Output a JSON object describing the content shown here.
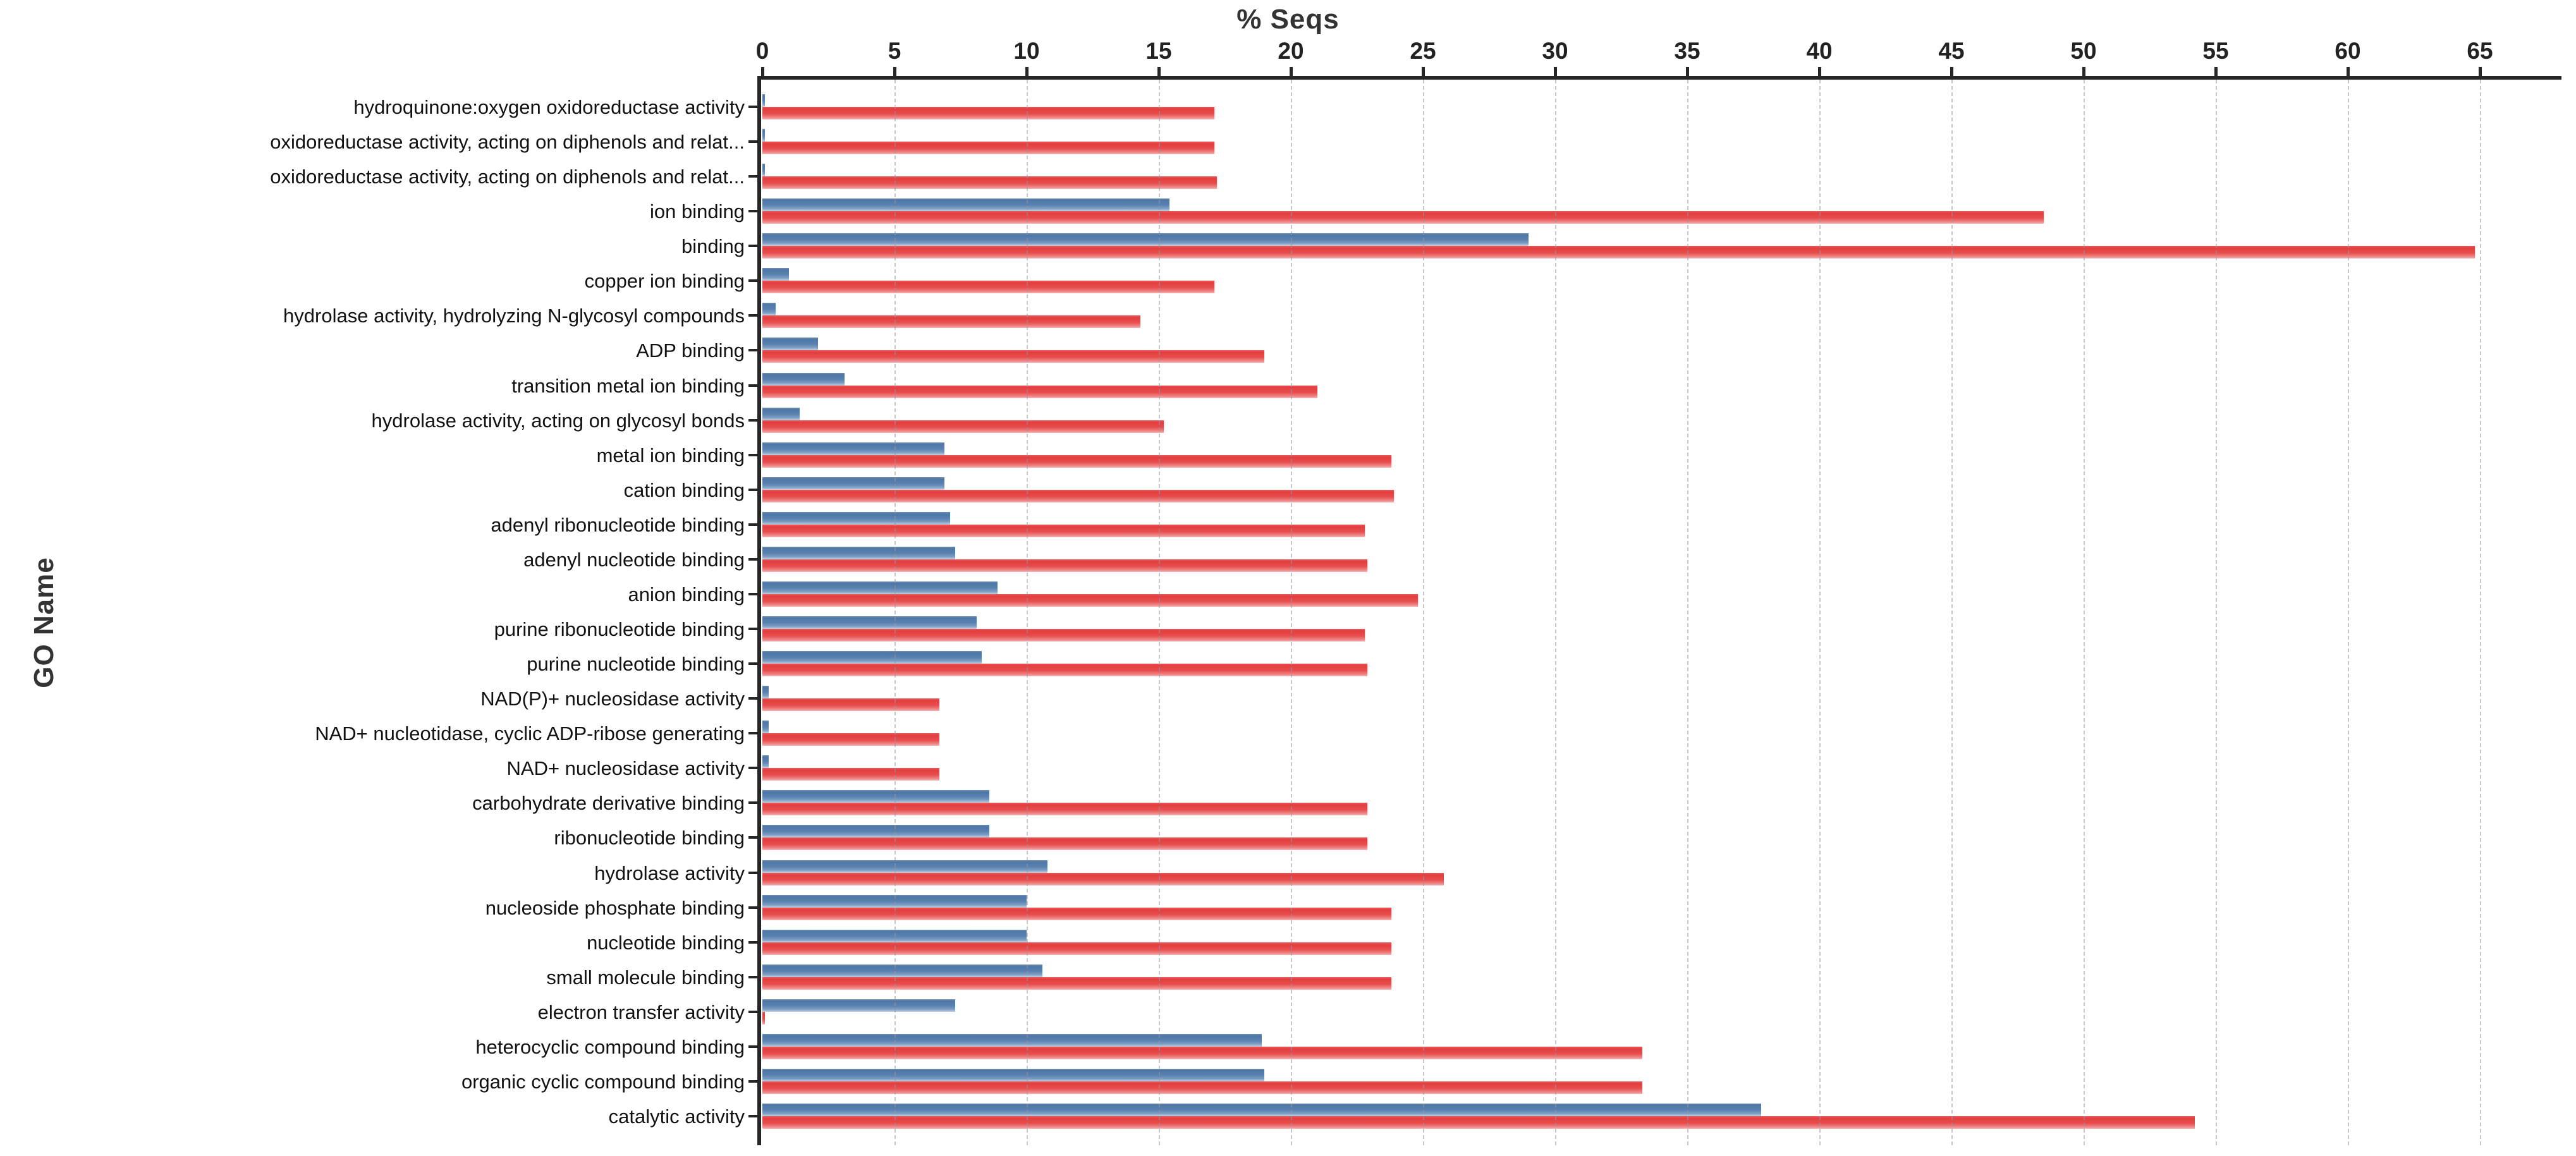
{
  "chart_data": {
    "type": "bar",
    "orientation": "horizontal",
    "title": "% Seqs",
    "xlabel": "% Seqs",
    "ylabel": "GO Name",
    "xlim": [
      0,
      68
    ],
    "xticks": [
      0,
      5,
      10,
      15,
      20,
      25,
      30,
      35,
      40,
      45,
      50,
      55,
      60,
      65
    ],
    "grid": "vertical-dashed-at-each-tick",
    "legend": "none",
    "categories": [
      "hydroquinone:oxygen oxidoreductase activity",
      "oxidoreductase activity, acting on diphenols and relat...",
      "oxidoreductase activity, acting on diphenols and relat...",
      "ion binding",
      "binding",
      "copper ion binding",
      "hydrolase activity, hydrolyzing N-glycosyl compounds",
      "ADP binding",
      "transition metal ion binding",
      "hydrolase activity, acting on glycosyl bonds",
      "metal ion binding",
      "cation binding",
      "adenyl ribonucleotide binding",
      "adenyl nucleotide binding",
      "anion binding",
      "purine ribonucleotide binding",
      "purine nucleotide binding",
      "NAD(P)+ nucleosidase activity",
      "NAD+ nucleotidase, cyclic ADP-ribose generating",
      "NAD+ nucleosidase activity",
      "carbohydrate derivative binding",
      "ribonucleotide binding",
      "hydrolase activity",
      "nucleoside phosphate binding",
      "nucleotide binding",
      "small molecule binding",
      "electron transfer activity",
      "heterocyclic compound binding",
      "organic cyclic compound binding",
      "catalytic activity"
    ],
    "series": [
      {
        "name": "blue_series",
        "color": "#5b82b0",
        "values": [
          0.1,
          0.1,
          0.1,
          15.4,
          29.0,
          1.0,
          0.5,
          2.1,
          3.1,
          1.4,
          6.9,
          6.9,
          7.1,
          7.3,
          8.9,
          8.1,
          8.3,
          0.25,
          0.25,
          0.25,
          8.6,
          8.6,
          10.8,
          10.0,
          10.0,
          10.6,
          7.3,
          18.9,
          19.0,
          37.8
        ]
      },
      {
        "name": "red_series",
        "color": "#e74c4c",
        "values": [
          17.1,
          17.1,
          17.2,
          48.5,
          64.8,
          17.1,
          14.3,
          19.0,
          21.0,
          15.2,
          23.8,
          23.9,
          22.8,
          22.9,
          24.8,
          22.8,
          22.9,
          6.7,
          6.7,
          6.7,
          22.9,
          22.9,
          25.8,
          23.8,
          23.8,
          23.8,
          0.1,
          33.3,
          33.3,
          54.2
        ]
      }
    ]
  },
  "colors": {
    "axis": "#262626",
    "gridline": "#9696a0",
    "tick_label": "#222222",
    "category_label": "#111111",
    "background": "#ffffff"
  }
}
